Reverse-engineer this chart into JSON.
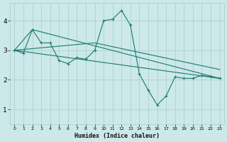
{
  "xlabel": "Humidex (Indice chaleur)",
  "bg_color": "#cce8e8",
  "grid_color": "#aacccc",
  "line_color": "#1a7a6e",
  "xlim": [
    -0.5,
    23.5
  ],
  "ylim": [
    0.5,
    4.6
  ],
  "xticks": [
    0,
    1,
    2,
    3,
    4,
    5,
    6,
    7,
    8,
    9,
    10,
    11,
    12,
    13,
    14,
    15,
    16,
    17,
    18,
    19,
    20,
    21,
    22,
    23
  ],
  "yticks": [
    1,
    2,
    3,
    4
  ],
  "line1_x": [
    0,
    1,
    2,
    3,
    4,
    5,
    6,
    7,
    8,
    9,
    10,
    11,
    12,
    13,
    14,
    15,
    16,
    17,
    18,
    19,
    20,
    21,
    22,
    23
  ],
  "line1_y": [
    3.0,
    2.9,
    3.7,
    3.25,
    3.25,
    2.65,
    2.55,
    2.75,
    2.7,
    3.0,
    4.0,
    4.05,
    4.35,
    3.85,
    2.2,
    1.65,
    1.15,
    1.45,
    2.1,
    2.05,
    2.05,
    2.15,
    2.1,
    2.05
  ],
  "line2_x": [
    0,
    2,
    23
  ],
  "line2_y": [
    3.0,
    3.7,
    2.05
  ],
  "line3_x": [
    0,
    9,
    23
  ],
  "line3_y": [
    3.0,
    3.25,
    2.35
  ],
  "line4_x": [
    0,
    23
  ],
  "line4_y": [
    3.0,
    2.05
  ]
}
